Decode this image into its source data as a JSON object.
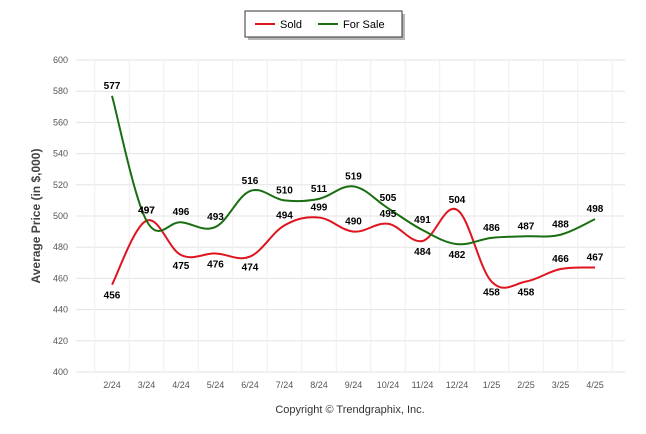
{
  "chart_data": {
    "type": "line",
    "title": "",
    "xlabel": "",
    "ylabel": "Average Price (in $,000)",
    "ylim": [
      400,
      600
    ],
    "ytick_step": 20,
    "grid": true,
    "legend_placement": "top-center",
    "categories": [
      "2/24",
      "3/24",
      "4/24",
      "5/24",
      "6/24",
      "7/24",
      "8/24",
      "9/24",
      "10/24",
      "11/24",
      "12/24",
      "1/25",
      "2/25",
      "3/25",
      "4/25"
    ],
    "series": [
      {
        "name": "Sold",
        "color": "#e0141e",
        "values": [
          456,
          497,
          475,
          476,
          474,
          494,
          499,
          490,
          495,
          484,
          504,
          458,
          458,
          466,
          467
        ]
      },
      {
        "name": "For Sale",
        "color": "#1a6e12",
        "values": [
          577,
          497,
          496,
          493,
          516,
          510,
          511,
          519,
          505,
          491,
          482,
          486,
          487,
          488,
          498
        ]
      }
    ]
  },
  "footer": "Copyright © Trendgraphix, Inc."
}
